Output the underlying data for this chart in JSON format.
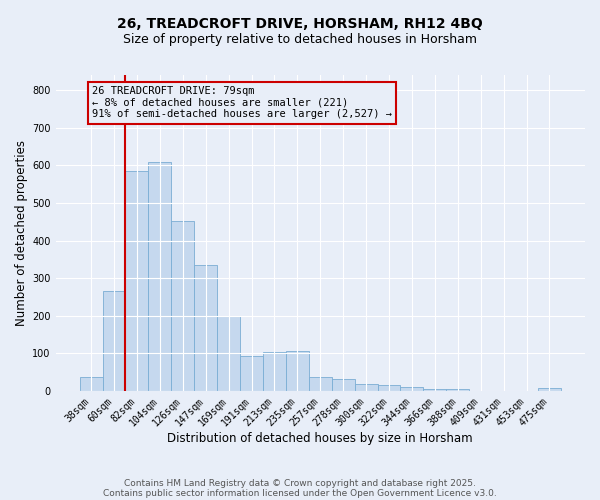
{
  "title": "26, TREADCROFT DRIVE, HORSHAM, RH12 4BQ",
  "subtitle": "Size of property relative to detached houses in Horsham",
  "xlabel": "Distribution of detached houses by size in Horsham",
  "ylabel": "Number of detached properties",
  "categories": [
    "38sqm",
    "60sqm",
    "82sqm",
    "104sqm",
    "126sqm",
    "147sqm",
    "169sqm",
    "191sqm",
    "213sqm",
    "235sqm",
    "257sqm",
    "278sqm",
    "300sqm",
    "322sqm",
    "344sqm",
    "366sqm",
    "388sqm",
    "409sqm",
    "431sqm",
    "453sqm",
    "475sqm"
  ],
  "values": [
    38,
    267,
    585,
    610,
    453,
    335,
    200,
    93,
    103,
    105,
    38,
    32,
    18,
    17,
    10,
    5,
    4,
    0,
    0,
    0,
    7
  ],
  "bar_color": "#c5d8ee",
  "bar_edgecolor": "#7aadd4",
  "background_color": "#e8eef8",
  "grid_color": "#ffffff",
  "red_line_color": "#cc0000",
  "red_line_x": 1.5,
  "annotation_text": "26 TREADCROFT DRIVE: 79sqm\n← 8% of detached houses are smaller (221)\n91% of semi-detached houses are larger (2,527) →",
  "annotation_box_edgecolor": "#cc0000",
  "ylim": [
    0,
    840
  ],
  "yticks": [
    0,
    100,
    200,
    300,
    400,
    500,
    600,
    700,
    800
  ],
  "footer_line1": "Contains HM Land Registry data © Crown copyright and database right 2025.",
  "footer_line2": "Contains public sector information licensed under the Open Government Licence v3.0.",
  "title_fontsize": 10,
  "subtitle_fontsize": 9,
  "axis_label_fontsize": 8.5,
  "tick_fontsize": 7,
  "annotation_fontsize": 7.5,
  "footer_fontsize": 6.5
}
